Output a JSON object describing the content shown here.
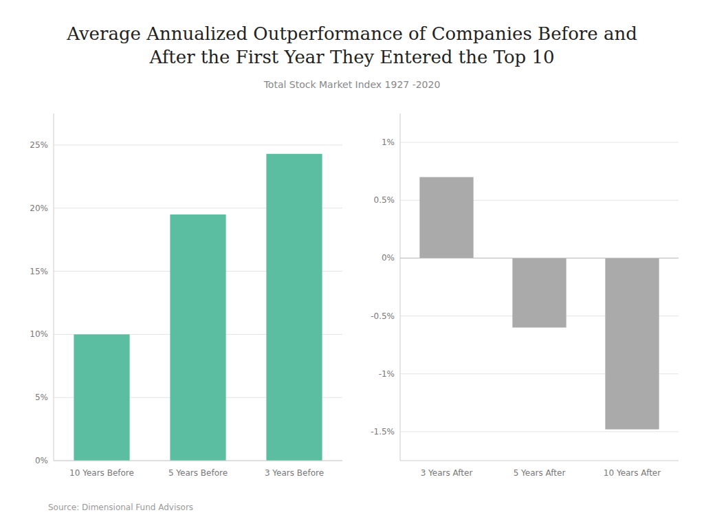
{
  "title": [
    "Average Annualized Outperformance of Companies Before and",
    "After the First Year They Entered the Top 10"
  ],
  "subtitle": "Total Stock Market Index 1927 -2020",
  "annotations": [
    "Source: Dimensional Fund Advisors"
  ],
  "chart_data": [
    {
      "type": "bar",
      "categories": [
        "10 Years Before",
        "5 Years Before",
        "3 Years Before"
      ],
      "values": [
        0.1,
        0.195,
        0.243
      ],
      "color": "#5BBEA0",
      "ylim": [
        0,
        0.275
      ],
      "yticks": [
        {
          "value": 0.0,
          "label": "0%"
        },
        {
          "value": 0.05,
          "label": "5%"
        },
        {
          "value": 0.1,
          "label": "10%"
        },
        {
          "value": 0.15,
          "label": "15%"
        },
        {
          "value": 0.2,
          "label": "20%"
        },
        {
          "value": 0.25,
          "label": "25%"
        }
      ],
      "grid": true
    },
    {
      "type": "bar",
      "categories": [
        "3 Years After",
        "5 Years After",
        "10 Years After"
      ],
      "values": [
        0.007,
        -0.006,
        -0.0148
      ],
      "color": "#AAAAAA",
      "ylim": [
        -0.0175,
        0.0125
      ],
      "yticks": [
        {
          "value": -0.015,
          "label": "-1.5%"
        },
        {
          "value": -0.01,
          "label": "-1%"
        },
        {
          "value": -0.005,
          "label": "-0.5%"
        },
        {
          "value": 0.0,
          "label": "0%"
        },
        {
          "value": 0.005,
          "label": "0.5%"
        },
        {
          "value": 0.01,
          "label": "1%"
        }
      ],
      "grid": true
    }
  ]
}
